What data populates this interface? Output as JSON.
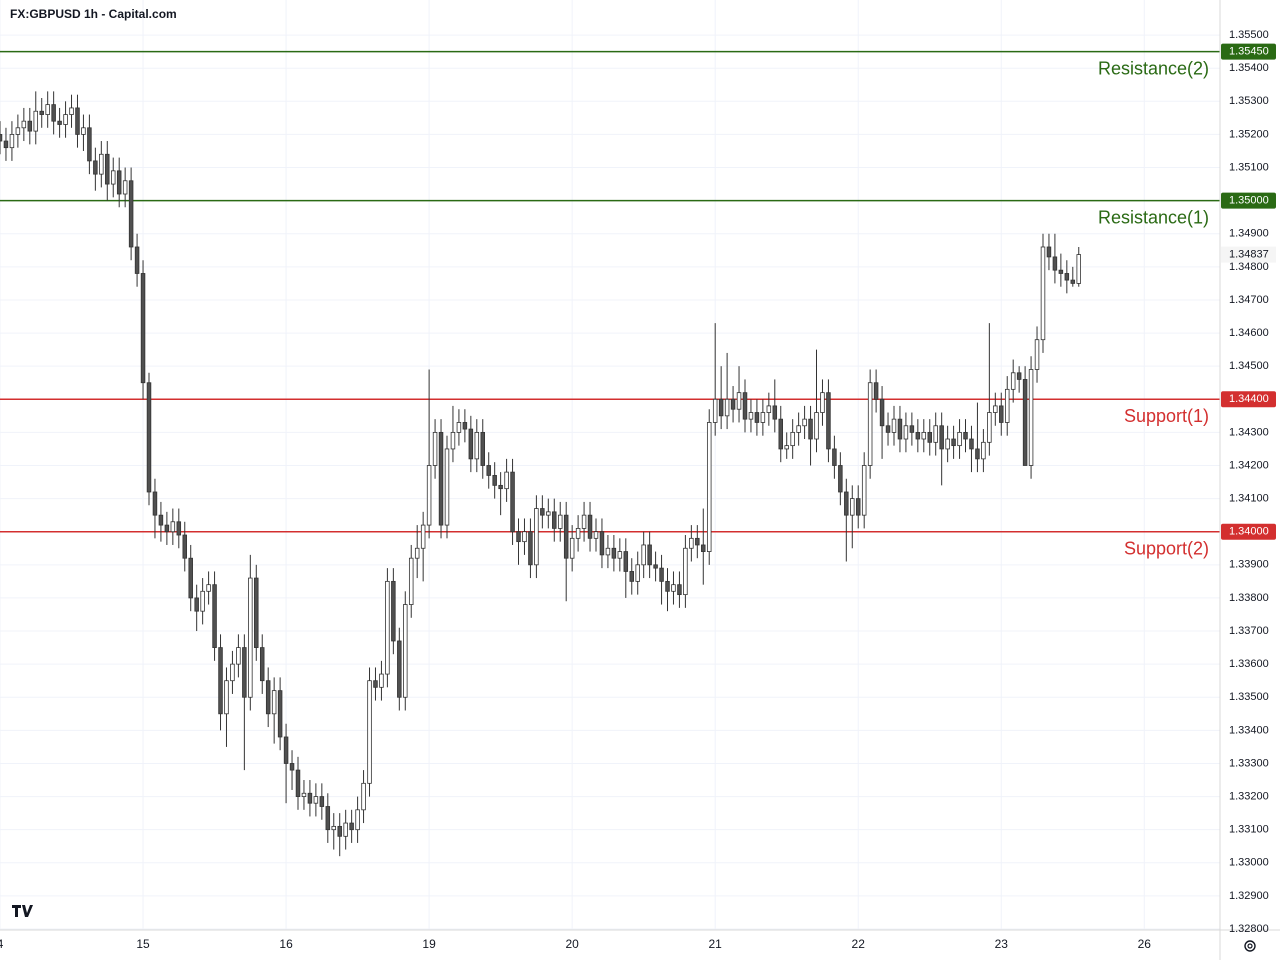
{
  "chart_data": {
    "type": "candlestick",
    "title": "FX:GBPUSD 1h - Capital.com",
    "ylim": [
      1.32797,
      1.35606
    ],
    "yticks": [
      {
        "value": 1.355,
        "label": "1.35500"
      },
      {
        "value": 1.354,
        "label": "1.35400"
      },
      {
        "value": 1.353,
        "label": "1.35300"
      },
      {
        "value": 1.352,
        "label": "1.35200"
      },
      {
        "value": 1.351,
        "label": "1.35100"
      },
      {
        "value": 1.349,
        "label": "1.34900"
      },
      {
        "value": 1.348,
        "label": "1.34800"
      },
      {
        "value": 1.347,
        "label": "1.34700"
      },
      {
        "value": 1.346,
        "label": "1.34600"
      },
      {
        "value": 1.345,
        "label": "1.34500"
      },
      {
        "value": 1.343,
        "label": "1.34300"
      },
      {
        "value": 1.342,
        "label": "1.34200"
      },
      {
        "value": 1.341,
        "label": "1.34100"
      },
      {
        "value": 1.339,
        "label": "1.33900"
      },
      {
        "value": 1.338,
        "label": "1.33800"
      },
      {
        "value": 1.337,
        "label": "1.33700"
      },
      {
        "value": 1.336,
        "label": "1.33600"
      },
      {
        "value": 1.335,
        "label": "1.33500"
      },
      {
        "value": 1.334,
        "label": "1.33400"
      },
      {
        "value": 1.333,
        "label": "1.33300"
      },
      {
        "value": 1.332,
        "label": "1.33200"
      },
      {
        "value": 1.331,
        "label": "1.33100"
      },
      {
        "value": 1.33,
        "label": "1.33000"
      },
      {
        "value": 1.329,
        "label": "1.32900"
      },
      {
        "value": 1.328,
        "label": "1.32800"
      }
    ],
    "xlim": [
      0,
      204.7
    ],
    "xticks": [
      {
        "value": 0,
        "label": "4"
      },
      {
        "value": 24,
        "label": "15"
      },
      {
        "value": 48,
        "label": "16"
      },
      {
        "value": 72,
        "label": "19"
      },
      {
        "value": 96,
        "label": "20"
      },
      {
        "value": 120,
        "label": "21"
      },
      {
        "value": 144,
        "label": "22"
      },
      {
        "value": 168,
        "label": "23"
      },
      {
        "value": 192,
        "label": "26"
      }
    ],
    "grid": true,
    "up_color": "#ffffff",
    "down_color": "#505050",
    "wick_color": "#333333",
    "last_price": 1.34837,
    "levels": [
      {
        "name": "Resistance(2)",
        "value": 1.3545,
        "label": "1.35450",
        "color": "#2a6a14"
      },
      {
        "name": "Resistance(1)",
        "value": 1.35,
        "label": "1.35000",
        "color": "#2a6a14"
      },
      {
        "name": "Support(1)",
        "value": 1.344,
        "label": "1.34400",
        "color": "#d32f2f"
      },
      {
        "name": "Support(2)",
        "value": 1.34,
        "label": "1.34000",
        "color": "#d32f2f"
      }
    ],
    "candles": [
      [
        1.352,
        1.3524,
        1.3514,
        1.3518
      ],
      [
        1.3518,
        1.3522,
        1.3512,
        1.3516
      ],
      [
        1.3516,
        1.3524,
        1.3512,
        1.352
      ],
      [
        1.352,
        1.3526,
        1.3516,
        1.3522
      ],
      [
        1.3522,
        1.3528,
        1.3518,
        1.3524
      ],
      [
        1.3524,
        1.3528,
        1.3517,
        1.3521
      ],
      [
        1.3521,
        1.3533,
        1.3517,
        1.3527
      ],
      [
        1.3527,
        1.3531,
        1.3522,
        1.3526
      ],
      [
        1.3526,
        1.3533,
        1.3522,
        1.3529
      ],
      [
        1.3529,
        1.3533,
        1.352,
        1.3524
      ],
      [
        1.3524,
        1.3528,
        1.3519,
        1.3523
      ],
      [
        1.3523,
        1.353,
        1.3519,
        1.3526
      ],
      [
        1.3526,
        1.3532,
        1.3522,
        1.3528
      ],
      [
        1.3528,
        1.3532,
        1.3516,
        1.352
      ],
      [
        1.352,
        1.3526,
        1.3515,
        1.3522
      ],
      [
        1.3522,
        1.3526,
        1.3508,
        1.3512
      ],
      [
        1.3512,
        1.3516,
        1.3503,
        1.3508
      ],
      [
        1.3508,
        1.3518,
        1.3504,
        1.3514
      ],
      [
        1.3514,
        1.3518,
        1.35,
        1.3505
      ],
      [
        1.3505,
        1.3513,
        1.3501,
        1.3509
      ],
      [
        1.3509,
        1.3513,
        1.3498,
        1.3502
      ],
      [
        1.3502,
        1.351,
        1.3498,
        1.3506
      ],
      [
        1.3506,
        1.351,
        1.3482,
        1.3486
      ],
      [
        1.3486,
        1.349,
        1.3474,
        1.3478
      ],
      [
        1.3478,
        1.3482,
        1.344,
        1.3445
      ],
      [
        1.3445,
        1.3448,
        1.3408,
        1.3412
      ],
      [
        1.3412,
        1.3416,
        1.3398,
        1.3405
      ],
      [
        1.3405,
        1.3409,
        1.3397,
        1.3402
      ],
      [
        1.3402,
        1.3406,
        1.3396,
        1.34
      ],
      [
        1.34,
        1.3407,
        1.3396,
        1.3403
      ],
      [
        1.3403,
        1.3407,
        1.3395,
        1.3399
      ],
      [
        1.3399,
        1.3403,
        1.3388,
        1.3392
      ],
      [
        1.3392,
        1.3396,
        1.3376,
        1.338
      ],
      [
        1.338,
        1.3384,
        1.337,
        1.3376
      ],
      [
        1.3376,
        1.3386,
        1.3372,
        1.3382
      ],
      [
        1.3382,
        1.3388,
        1.3378,
        1.3384
      ],
      [
        1.3384,
        1.3388,
        1.3361,
        1.3365
      ],
      [
        1.3365,
        1.3369,
        1.334,
        1.3345
      ],
      [
        1.3345,
        1.3359,
        1.3335,
        1.3355
      ],
      [
        1.3355,
        1.3364,
        1.3351,
        1.336
      ],
      [
        1.336,
        1.3369,
        1.3356,
        1.3365
      ],
      [
        1.3365,
        1.3369,
        1.3328,
        1.335
      ],
      [
        1.335,
        1.3393,
        1.3346,
        1.3386
      ],
      [
        1.3386,
        1.339,
        1.3361,
        1.3365
      ],
      [
        1.3365,
        1.3369,
        1.3351,
        1.3355
      ],
      [
        1.3355,
        1.3359,
        1.3341,
        1.3345
      ],
      [
        1.3345,
        1.3356,
        1.3336,
        1.3352
      ],
      [
        1.3352,
        1.3356,
        1.3334,
        1.3338
      ],
      [
        1.3338,
        1.3342,
        1.3318,
        1.333
      ],
      [
        1.333,
        1.3334,
        1.3322,
        1.3328
      ],
      [
        1.3328,
        1.3332,
        1.3316,
        1.332
      ],
      [
        1.332,
        1.3325,
        1.3316,
        1.3321
      ],
      [
        1.3321,
        1.3325,
        1.3314,
        1.3318
      ],
      [
        1.3318,
        1.3324,
        1.3314,
        1.332
      ],
      [
        1.332,
        1.3324,
        1.3313,
        1.3317
      ],
      [
        1.3317,
        1.3321,
        1.3306,
        1.331
      ],
      [
        1.331,
        1.3315,
        1.3304,
        1.3311
      ],
      [
        1.3311,
        1.3315,
        1.3302,
        1.3308
      ],
      [
        1.3308,
        1.3316,
        1.3304,
        1.3312
      ],
      [
        1.3312,
        1.3316,
        1.3306,
        1.331
      ],
      [
        1.331,
        1.332,
        1.3306,
        1.3316
      ],
      [
        1.3316,
        1.3328,
        1.3312,
        1.3324
      ],
      [
        1.3324,
        1.3359,
        1.332,
        1.3355
      ],
      [
        1.3355,
        1.3359,
        1.3349,
        1.3353
      ],
      [
        1.3353,
        1.3361,
        1.3349,
        1.3357
      ],
      [
        1.3357,
        1.3389,
        1.3353,
        1.3385
      ],
      [
        1.3385,
        1.3389,
        1.3363,
        1.3367
      ],
      [
        1.3367,
        1.3371,
        1.3346,
        1.335
      ],
      [
        1.335,
        1.3382,
        1.3346,
        1.3378
      ],
      [
        1.3378,
        1.3396,
        1.3374,
        1.3392
      ],
      [
        1.3392,
        1.3402,
        1.3386,
        1.3395
      ],
      [
        1.3395,
        1.3406,
        1.3385,
        1.3402
      ],
      [
        1.3402,
        1.3449,
        1.3398,
        1.342
      ],
      [
        1.342,
        1.3434,
        1.3416,
        1.343
      ],
      [
        1.343,
        1.3434,
        1.3398,
        1.3402
      ],
      [
        1.3402,
        1.3429,
        1.3398,
        1.3425
      ],
      [
        1.3425,
        1.3438,
        1.3421,
        1.343
      ],
      [
        1.343,
        1.3437,
        1.3426,
        1.3433
      ],
      [
        1.3433,
        1.3437,
        1.3427,
        1.3431
      ],
      [
        1.3431,
        1.3435,
        1.3418,
        1.3422
      ],
      [
        1.3422,
        1.3434,
        1.3418,
        1.343
      ],
      [
        1.343,
        1.3434,
        1.3416,
        1.342
      ],
      [
        1.342,
        1.3424,
        1.3413,
        1.3417
      ],
      [
        1.3417,
        1.3421,
        1.341,
        1.3414
      ],
      [
        1.3414,
        1.3418,
        1.3405,
        1.3413
      ],
      [
        1.3413,
        1.3422,
        1.3409,
        1.3418
      ],
      [
        1.3418,
        1.3422,
        1.3396,
        1.34
      ],
      [
        1.34,
        1.3404,
        1.339,
        1.3397
      ],
      [
        1.3397,
        1.3404,
        1.3393,
        1.34
      ],
      [
        1.34,
        1.3404,
        1.3386,
        1.339
      ],
      [
        1.339,
        1.3411,
        1.3386,
        1.3407
      ],
      [
        1.3407,
        1.3411,
        1.3401,
        1.3405
      ],
      [
        1.3405,
        1.341,
        1.3401,
        1.3406
      ],
      [
        1.3406,
        1.341,
        1.3397,
        1.3401
      ],
      [
        1.3401,
        1.3409,
        1.3397,
        1.3405
      ],
      [
        1.3405,
        1.3409,
        1.3379,
        1.3392
      ],
      [
        1.3392,
        1.3402,
        1.3388,
        1.3398
      ],
      [
        1.3398,
        1.3405,
        1.3394,
        1.3401
      ],
      [
        1.3401,
        1.3409,
        1.3397,
        1.3405
      ],
      [
        1.3405,
        1.3409,
        1.3394,
        1.3398
      ],
      [
        1.3398,
        1.3404,
        1.3394,
        1.34
      ],
      [
        1.34,
        1.3404,
        1.3389,
        1.3393
      ],
      [
        1.3393,
        1.3399,
        1.3389,
        1.3395
      ],
      [
        1.3395,
        1.3399,
        1.3388,
        1.3392
      ],
      [
        1.3392,
        1.3398,
        1.3388,
        1.3394
      ],
      [
        1.3394,
        1.3398,
        1.338,
        1.3388
      ],
      [
        1.3388,
        1.3392,
        1.3381,
        1.3385
      ],
      [
        1.3385,
        1.3394,
        1.3381,
        1.339
      ],
      [
        1.339,
        1.34,
        1.3386,
        1.3396
      ],
      [
        1.3396,
        1.34,
        1.3386,
        1.339
      ],
      [
        1.339,
        1.3394,
        1.3385,
        1.3389
      ],
      [
        1.3389,
        1.3393,
        1.3378,
        1.3385
      ],
      [
        1.3385,
        1.3389,
        1.3376,
        1.3382
      ],
      [
        1.3382,
        1.3388,
        1.3378,
        1.3384
      ],
      [
        1.3384,
        1.3388,
        1.3377,
        1.3381
      ],
      [
        1.3381,
        1.3399,
        1.3377,
        1.3395
      ],
      [
        1.3395,
        1.3402,
        1.3391,
        1.3398
      ],
      [
        1.3398,
        1.3402,
        1.3392,
        1.3396
      ],
      [
        1.3396,
        1.3407,
        1.3384,
        1.3394
      ],
      [
        1.3394,
        1.3437,
        1.339,
        1.3433
      ],
      [
        1.3433,
        1.3463,
        1.3429,
        1.344
      ],
      [
        1.344,
        1.345,
        1.3431,
        1.3435
      ],
      [
        1.3435,
        1.3454,
        1.3431,
        1.344
      ],
      [
        1.344,
        1.3444,
        1.3433,
        1.3437
      ],
      [
        1.3437,
        1.345,
        1.3433,
        1.3442
      ],
      [
        1.3442,
        1.3446,
        1.343,
        1.3434
      ],
      [
        1.3434,
        1.344,
        1.343,
        1.3436
      ],
      [
        1.3436,
        1.344,
        1.3429,
        1.3433
      ],
      [
        1.3433,
        1.344,
        1.3429,
        1.3436
      ],
      [
        1.3436,
        1.3442,
        1.3432,
        1.3438
      ],
      [
        1.3438,
        1.3446,
        1.343,
        1.3434
      ],
      [
        1.3434,
        1.3438,
        1.3421,
        1.3425
      ],
      [
        1.3425,
        1.343,
        1.3422,
        1.3426
      ],
      [
        1.3426,
        1.3434,
        1.3422,
        1.343
      ],
      [
        1.343,
        1.3436,
        1.3426,
        1.3432
      ],
      [
        1.3432,
        1.3438,
        1.3428,
        1.3434
      ],
      [
        1.3434,
        1.3438,
        1.342,
        1.3428
      ],
      [
        1.3428,
        1.3455,
        1.3424,
        1.3436
      ],
      [
        1.3436,
        1.3446,
        1.3432,
        1.3442
      ],
      [
        1.3442,
        1.3446,
        1.3421,
        1.3425
      ],
      [
        1.3425,
        1.3429,
        1.3416,
        1.342
      ],
      [
        1.342,
        1.3424,
        1.3408,
        1.3412
      ],
      [
        1.3412,
        1.3416,
        1.3391,
        1.3405
      ],
      [
        1.3405,
        1.3414,
        1.3395,
        1.341
      ],
      [
        1.341,
        1.3414,
        1.3401,
        1.3405
      ],
      [
        1.3405,
        1.3424,
        1.3401,
        1.342
      ],
      [
        1.342,
        1.3449,
        1.3416,
        1.3445
      ],
      [
        1.3445,
        1.3449,
        1.3436,
        1.344
      ],
      [
        1.344,
        1.3444,
        1.3422,
        1.3432
      ],
      [
        1.3432,
        1.3436,
        1.3426,
        1.343
      ],
      [
        1.343,
        1.3438,
        1.3426,
        1.3434
      ],
      [
        1.3434,
        1.3438,
        1.3424,
        1.3428
      ],
      [
        1.3428,
        1.3436,
        1.3424,
        1.3432
      ],
      [
        1.3432,
        1.3436,
        1.3426,
        1.343
      ],
      [
        1.343,
        1.3434,
        1.3424,
        1.3428
      ],
      [
        1.3428,
        1.3434,
        1.3424,
        1.343
      ],
      [
        1.343,
        1.3434,
        1.3423,
        1.3427
      ],
      [
        1.3427,
        1.3436,
        1.3423,
        1.3432
      ],
      [
        1.3432,
        1.3436,
        1.3414,
        1.3425
      ],
      [
        1.3425,
        1.3432,
        1.3421,
        1.3428
      ],
      [
        1.3428,
        1.3432,
        1.3422,
        1.3426
      ],
      [
        1.3426,
        1.3434,
        1.3422,
        1.343
      ],
      [
        1.343,
        1.3434,
        1.3424,
        1.3428
      ],
      [
        1.3428,
        1.3432,
        1.3418,
        1.3425
      ],
      [
        1.3425,
        1.3439,
        1.3418,
        1.3422
      ],
      [
        1.3422,
        1.3431,
        1.3418,
        1.3427
      ],
      [
        1.3427,
        1.3463,
        1.3423,
        1.3436
      ],
      [
        1.3436,
        1.3442,
        1.3432,
        1.3438
      ],
      [
        1.3438,
        1.3442,
        1.3429,
        1.3433
      ],
      [
        1.3433,
        1.3447,
        1.3429,
        1.3443
      ],
      [
        1.3443,
        1.3452,
        1.3439,
        1.3448
      ],
      [
        1.3448,
        1.345,
        1.3442,
        1.3446
      ],
      [
        1.3446,
        1.345,
        1.342,
        1.342
      ],
      [
        1.342,
        1.3453,
        1.3416,
        1.3449
      ],
      [
        1.3449,
        1.3462,
        1.3445,
        1.3458
      ],
      [
        1.3458,
        1.349,
        1.3454,
        1.3486
      ],
      [
        1.3486,
        1.349,
        1.3479,
        1.3483
      ],
      [
        1.3483,
        1.349,
        1.3475,
        1.3479
      ],
      [
        1.3479,
        1.3484,
        1.3474,
        1.3478
      ],
      [
        1.3478,
        1.3482,
        1.3472,
        1.3476
      ],
      [
        1.3476,
        1.348,
        1.3474,
        1.3475
      ],
      [
        1.3475,
        1.3486,
        1.3474,
        1.34837
      ]
    ]
  }
}
